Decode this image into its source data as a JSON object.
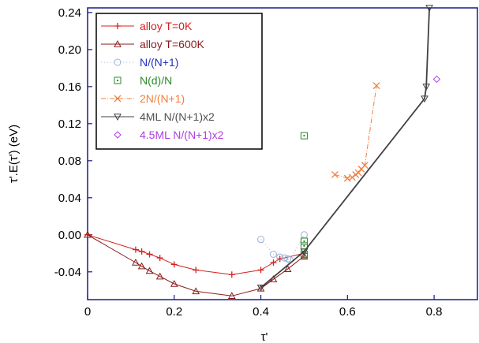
{
  "chart_data": {
    "type": "scatter",
    "xlabel": "τ'",
    "ylabel": "τ'.E(τ')  (eV)",
    "xlim": [
      0,
      0.9
    ],
    "ylim": [
      -0.07,
      0.245
    ],
    "xticks": [
      "0",
      "0.2",
      "0.4",
      "0.6",
      "0.8"
    ],
    "xtick_values": [
      0,
      0.2,
      0.4,
      0.6,
      0.8
    ],
    "yticks": [
      "0.24",
      "0.20",
      "0.16",
      "0.12",
      "0.08",
      "0.04",
      "0.00",
      "-0.04"
    ],
    "ytick_values": [
      0.24,
      0.2,
      0.16,
      0.12,
      0.08,
      0.04,
      0.0,
      -0.04
    ],
    "legend_position": "top-left",
    "series": [
      {
        "name": "alloy  T=0K",
        "color": "#d42020",
        "marker": "plus",
        "line": "solid",
        "x": [
          0.0,
          0.111,
          0.125,
          0.143,
          0.167,
          0.2,
          0.25,
          0.333,
          0.4,
          0.429,
          0.444,
          0.5
        ],
        "y": [
          0.0,
          -0.016,
          -0.018,
          -0.021,
          -0.025,
          -0.032,
          -0.038,
          -0.043,
          -0.038,
          -0.03,
          -0.026,
          -0.02
        ]
      },
      {
        "name": "alloy  T=600K",
        "color": "#8b1a1a",
        "marker": "triangle",
        "line": "solid",
        "x": [
          0.0,
          0.111,
          0.125,
          0.143,
          0.167,
          0.2,
          0.25,
          0.333,
          0.4,
          0.429,
          0.462,
          0.5
        ],
        "y": [
          0.0,
          -0.03,
          -0.034,
          -0.039,
          -0.045,
          -0.053,
          -0.061,
          -0.066,
          -0.058,
          -0.048,
          -0.037,
          -0.023
        ]
      },
      {
        "name": "N/(N+1)",
        "color": "#9ab0d8",
        "marker": "circle",
        "line": "dotted",
        "x": [
          0.4,
          0.429,
          0.444,
          0.455,
          0.462,
          0.467,
          0.5
        ],
        "y": [
          -0.005,
          -0.021,
          -0.024,
          -0.025,
          -0.026,
          -0.027,
          0.0
        ]
      },
      {
        "name": "N(d)/N",
        "color": "#2a8a2a",
        "marker": "square-dot",
        "line": "none",
        "x": [
          0.5,
          0.5,
          0.5,
          0.5,
          0.5
        ],
        "y": [
          0.107,
          -0.007,
          -0.012,
          -0.021,
          -0.023
        ]
      },
      {
        "name": "2N/(N+1)",
        "color": "#f08040",
        "marker": "cross",
        "line": "dashdot",
        "x": [
          0.571,
          0.6,
          0.611,
          0.619,
          0.625,
          0.632,
          0.64,
          0.667
        ],
        "y": [
          0.065,
          0.061,
          0.062,
          0.065,
          0.067,
          0.071,
          0.075,
          0.161
        ]
      },
      {
        "name": "4ML  N/(N+1)x2",
        "color": "#404040",
        "marker": "triangle-down",
        "line": "solid",
        "x": [
          0.4,
          0.5,
          0.778,
          0.782,
          0.789
        ],
        "y": [
          -0.057,
          -0.018,
          0.147,
          0.16,
          0.245
        ]
      },
      {
        "name": "4.5ML  N/(N+1)x2",
        "color": "#b040e0",
        "marker": "diamond",
        "line": "none",
        "x": [
          0.806
        ],
        "y": [
          0.168
        ]
      }
    ]
  }
}
